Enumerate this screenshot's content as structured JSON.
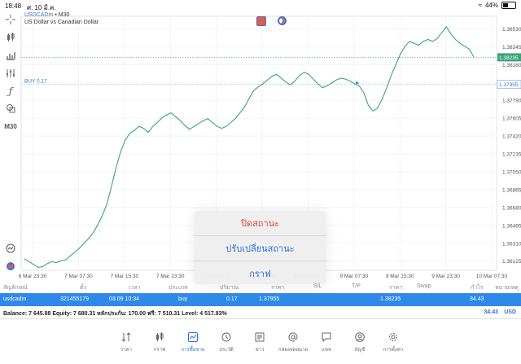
{
  "status_bar": {
    "time": "18:48",
    "date": "ศ. 10 มี.ค.",
    "battery": "44%",
    "battery_level": 0.44
  },
  "chart_header": {
    "symbol": "USDCADm",
    "timeframe": "M30",
    "description": "US Dollar vs Canadian Dollar"
  },
  "toolbar": [
    {
      "icon": "crosshair-icon"
    },
    {
      "icon": "candlestick-icon"
    },
    {
      "icon": "bar-chart-icon"
    },
    {
      "icon": "indicators-icon"
    },
    {
      "icon": "function-icon"
    },
    {
      "icon": "objects-icon"
    },
    {
      "label": "M30"
    }
  ],
  "price_line_label": "BUY 0.17",
  "current_price": "1.38235",
  "buy_price_label": "1.37955",
  "chart_data": {
    "type": "line",
    "title": "",
    "x_ticks": [
      "6 Mar 23:30",
      "7 Mar 07:30",
      "7 Mar 15:30",
      "7 Mar 23:30",
      "8 Mar 07:30",
      "8 Mar 15:30",
      "8 Mar 23:30",
      "9 Mar 07:30",
      "9 Mar 15:30",
      "9 Mar 23:30",
      "10 Mar 07:30"
    ],
    "y_ticks": [
      "1.38530",
      "1.38345",
      "1.38160",
      "1.37975",
      "1.37790",
      "1.37605",
      "1.37420",
      "1.37235",
      "1.37050",
      "1.36865",
      "1.36680",
      "1.36495",
      "1.36310",
      "1.36125"
    ],
    "ylim": [
      1.3603,
      1.3866
    ],
    "series": [
      {
        "values": [
          1.3615,
          1.3612,
          1.3609,
          1.3606,
          1.3607,
          1.361,
          1.3612,
          1.3611,
          1.3613,
          1.3614,
          1.3618,
          1.3622,
          1.3626,
          1.3631,
          1.3636,
          1.3642,
          1.365,
          1.366,
          1.3672,
          1.369,
          1.371,
          1.3726,
          1.3738,
          1.3745,
          1.3748,
          1.3752,
          1.375,
          1.3746,
          1.3752,
          1.3756,
          1.3761,
          1.3764,
          1.3766,
          1.3762,
          1.3758,
          1.3753,
          1.3749,
          1.3752,
          1.3755,
          1.3758,
          1.376,
          1.3756,
          1.3752,
          1.375,
          1.3752,
          1.3756,
          1.376,
          1.3766,
          1.3772,
          1.3781,
          1.3789,
          1.3793,
          1.3796,
          1.38,
          1.3804,
          1.3806,
          1.3802,
          1.3798,
          1.3795,
          1.3799,
          1.3805,
          1.3808,
          1.3806,
          1.3801,
          1.3796,
          1.3792,
          1.3794,
          1.3797,
          1.38,
          1.3802,
          1.3801,
          1.3799,
          1.3796,
          1.3794,
          1.3787,
          1.3774,
          1.3768,
          1.3771,
          1.378,
          1.3792,
          1.3805,
          1.3816,
          1.3827,
          1.3835,
          1.384,
          1.3838,
          1.3836,
          1.384,
          1.3842,
          1.384,
          1.3843,
          1.3849,
          1.3855,
          1.3848,
          1.3842,
          1.3838,
          1.3835,
          1.3832,
          1.3824
        ]
      }
    ]
  },
  "popup_menu": {
    "items": [
      "ปิดสถานะ",
      "ปรับเปลี่ยนสถานะ",
      "กราฟ"
    ]
  },
  "table_header": {
    "symbol": "สัญลักษณ์",
    "ticket": "ตั๋ว",
    "time": "เวลา",
    "type": "ประเภท",
    "volume": "ปริมาณ",
    "price": "ราคา",
    "sl": "S/L",
    "tp": "T/P",
    "cur_price": "ราคา",
    "swap": "Swap",
    "profit": "กำไร",
    "comment": "หมายเหตุ"
  },
  "position": {
    "symbol": "usdcadm",
    "ticket": "321455179",
    "time": "03.09 10:34",
    "type": "buy",
    "volume": "0.17",
    "price": "1.37955",
    "cur_price": "1.38235",
    "profit": "34.43"
  },
  "balance_bar": {
    "text": "Balance: 7 645.88 Equity: 7 680.31 หลักประกัน: 170.00 ฟรี: 7 510.31 Level: 4 517.83%",
    "total": "34.43",
    "currency": "USD"
  },
  "tabs": [
    {
      "label": "ราคา",
      "icon": "quotes-icon"
    },
    {
      "label": "กราฟ",
      "icon": "chart-icon"
    },
    {
      "label": "การซื้อขาย",
      "icon": "trade-icon",
      "active": true
    },
    {
      "label": "ประวัติ",
      "icon": "history-icon"
    },
    {
      "label": "ข่าว",
      "icon": "news-icon"
    },
    {
      "label": "กล่องจดหมาย",
      "icon": "mailbox-icon"
    },
    {
      "label": "แชท",
      "icon": "chat-icon"
    },
    {
      "label": "บัญชี",
      "icon": "account-icon"
    },
    {
      "label": "การตั้งค่า",
      "icon": "settings-icon"
    }
  ],
  "colors": {
    "line": "#3aa57a",
    "accent": "#2f89e8",
    "danger": "#e0473a"
  }
}
